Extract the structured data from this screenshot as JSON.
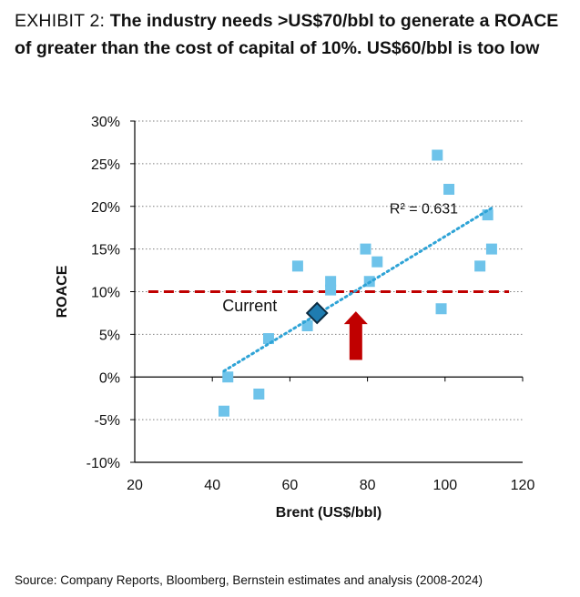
{
  "header": {
    "exhibit_label": "EXHIBIT 2: ",
    "headline": "The industry needs >US$70/bbl to generate a ROACE of greater than the cost of capital of 10%. US$60/bbl is too low"
  },
  "footer": {
    "source": "Source: Company Reports, Bloomberg, Bernstein estimates and analysis (2008-2024)"
  },
  "colors": {
    "points": "#6ec3ea",
    "trendline": "#2ea3d6",
    "threshold": "#c00000",
    "arrow": "#c00000",
    "current_marker": "#1f7cb0",
    "axis": "#000000",
    "grid": "#7f7f7f"
  },
  "chart_data": {
    "type": "scatter",
    "title": "",
    "xlabel": "Brent (US$/bbl)",
    "ylabel": "ROACE",
    "xlim": [
      20,
      120
    ],
    "ylim": [
      -10,
      30
    ],
    "xticks": [
      20,
      40,
      60,
      80,
      100,
      120
    ],
    "yticks": [
      -10,
      -5,
      0,
      5,
      10,
      15,
      20,
      25,
      30
    ],
    "ytick_labels": [
      "-10%",
      "-5%",
      "0%",
      "5%",
      "10%",
      "15%",
      "20%",
      "25%",
      "30%"
    ],
    "grid": "horizontal dotted",
    "points": [
      {
        "x": 43,
        "y": -4
      },
      {
        "x": 44,
        "y": 0
      },
      {
        "x": 52,
        "y": -2
      },
      {
        "x": 54.5,
        "y": 4.5
      },
      {
        "x": 62,
        "y": 13
      },
      {
        "x": 64.5,
        "y": 6
      },
      {
        "x": 70.5,
        "y": 11.2
      },
      {
        "x": 70.5,
        "y": 10.2
      },
      {
        "x": 79.5,
        "y": 15
      },
      {
        "x": 80.5,
        "y": 11.2
      },
      {
        "x": 82.5,
        "y": 13.5
      },
      {
        "x": 98,
        "y": 26
      },
      {
        "x": 99,
        "y": 8
      },
      {
        "x": 101,
        "y": 22
      },
      {
        "x": 109,
        "y": 13
      },
      {
        "x": 111,
        "y": 19
      },
      {
        "x": 112,
        "y": 15
      }
    ],
    "trendline": {
      "x": [
        43,
        112
      ],
      "y": [
        0.7,
        19.8
      ],
      "label": "R² = 0.631",
      "style": "dotted"
    },
    "threshold": {
      "y": 10,
      "x_range": [
        23.5,
        116.5
      ],
      "style": "dashed"
    },
    "current": {
      "x": 67,
      "y": 7.5,
      "label": "Current"
    },
    "arrow": {
      "x": 77,
      "y_from": 2,
      "y_to": 7.7
    }
  }
}
